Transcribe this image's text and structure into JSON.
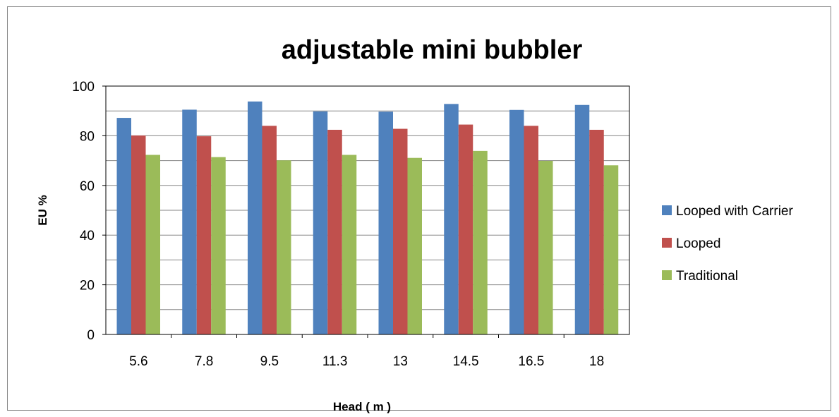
{
  "chart_data": {
    "type": "bar",
    "title": "adjustable mini bubbler",
    "xlabel": "Head ( m )",
    "ylabel": "EU  %",
    "categories": [
      "5.6",
      "7.8",
      "9.5",
      "11.3",
      "13",
      "14.5",
      "16.5",
      "18"
    ],
    "ylim": [
      0,
      100
    ],
    "yticks": [
      "0",
      "20",
      "40",
      "60",
      "80",
      "100"
    ],
    "grid": true,
    "legend_position": "right",
    "series": [
      {
        "name": "Looped with Carrier",
        "color": "#4F81BD",
        "values": [
          87.2,
          90.5,
          93.8,
          89.8,
          89.7,
          92.8,
          90.4,
          92.4
        ]
      },
      {
        "name": "Looped",
        "color": "#C0504D",
        "values": [
          80.1,
          79.8,
          84.0,
          82.4,
          82.8,
          84.5,
          84.0,
          82.4
        ]
      },
      {
        "name": "Traditional",
        "color": "#9BBB59",
        "values": [
          72.3,
          71.4,
          70.1,
          72.3,
          71.1,
          73.9,
          69.9,
          68.1
        ]
      }
    ]
  }
}
